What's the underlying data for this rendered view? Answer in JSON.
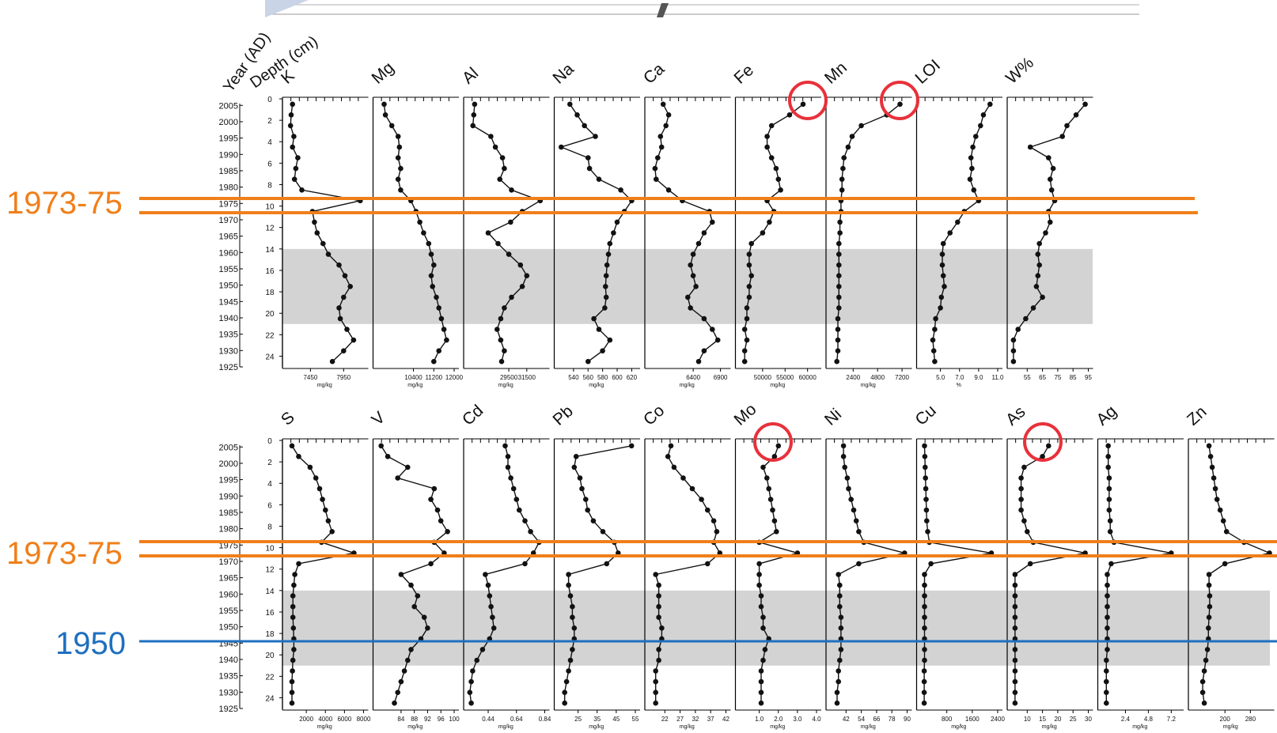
{
  "header_labels": {
    "year": "Year (AD)",
    "depth": "Depth (cm)"
  },
  "markers": {
    "label_1973": "1973-75",
    "label_1950": "1950",
    "color_1973": "#f07f1a",
    "color_1950": "#1f6fbf",
    "circle_color": "#e8313b",
    "band_color": "#d3d3d3"
  },
  "chart_data": {
    "type": "line",
    "orientation": "depth profiles (values on x, depth downward)",
    "depth_axis": {
      "range": [
        0,
        25
      ],
      "ticks": [
        "0",
        "2",
        "4",
        "6",
        "8",
        "10",
        "12",
        "14",
        "16",
        "18",
        "20",
        "22",
        "24"
      ]
    },
    "year_axis": {
      "ticks": [
        "2005",
        "2000",
        "1995",
        "1990",
        "1985",
        "1980",
        "1975",
        "1970",
        "1965",
        "1960",
        "1955",
        "1950",
        "1945",
        "1940",
        "1935",
        "1930",
        "1925"
      ]
    },
    "depths": [
      0.5,
      1.5,
      2.5,
      3.5,
      4.5,
      5.5,
      6.5,
      7.5,
      8.5,
      9.5,
      10.5,
      11.5,
      12.5,
      13.5,
      14.5,
      15.5,
      16.5,
      17.5,
      18.5,
      19.5,
      20.5,
      21.5,
      22.5,
      23.5,
      24.5
    ],
    "shaded_interval_depth": [
      14,
      21
    ],
    "panels": [
      {
        "name": "K",
        "unit": "mg/kg",
        "xlim": [
          7100,
          8250
        ],
        "ticks": [
          "7450",
          "7950"
        ],
        "values": [
          7180,
          7160,
          7150,
          7200,
          7180,
          7260,
          7230,
          7210,
          7320,
          8200,
          7480,
          7510,
          7550,
          7640,
          7720,
          7880,
          7970,
          8050,
          7950,
          7880,
          7900,
          8000,
          8100,
          7950,
          7780
        ]
      },
      {
        "name": "Mg",
        "unit": "mg/kg",
        "xlim": [
          9000,
          12000
        ],
        "ticks": [
          "10400",
          "11200",
          "12000"
        ],
        "values": [
          9250,
          9300,
          9550,
          9800,
          9850,
          9800,
          9900,
          9800,
          9900,
          10300,
          10500,
          10650,
          10800,
          11000,
          11100,
          11200,
          11100,
          11150,
          11300,
          11400,
          11500,
          11600,
          11700,
          11400,
          11200
        ]
      },
      {
        "name": "Al",
        "unit": "mg/kg",
        "xlim": [
          25000,
          33500
        ],
        "ticks": [
          "29500",
          "31500"
        ],
        "values": [
          25700,
          25600,
          25500,
          27500,
          28000,
          28800,
          29000,
          28500,
          29800,
          33000,
          31000,
          29700,
          27200,
          28300,
          29500,
          30800,
          31500,
          31000,
          29800,
          29000,
          28600,
          28200,
          28600,
          29000,
          28700
        ]
      },
      {
        "name": "Na",
        "unit": "mg/kg",
        "xlim": [
          520,
          625
        ],
        "ticks": [
          "540",
          "560",
          "580",
          "600",
          "620"
        ],
        "values": [
          535,
          545,
          555,
          570,
          523,
          560,
          562,
          575,
          605,
          620,
          610,
          600,
          595,
          590,
          588,
          586,
          585,
          584,
          585,
          583,
          568,
          575,
          590,
          580,
          560
        ]
      },
      {
        "name": "Ca",
        "unit": "mg/kg",
        "xlim": [
          5600,
          7000
        ],
        "ticks": [
          "6400",
          "6900"
        ],
        "values": [
          5850,
          5950,
          5900,
          5800,
          5820,
          5750,
          5700,
          5720,
          5950,
          6200,
          6700,
          6750,
          6600,
          6500,
          6400,
          6350,
          6400,
          6450,
          6300,
          6350,
          6600,
          6750,
          6850,
          6600,
          6500
        ]
      },
      {
        "name": "Fe",
        "unit": "mg/kg",
        "xlim": [
          45000,
          62000
        ],
        "ticks": [
          "50000",
          "55000",
          "60000"
        ],
        "values": [
          59000,
          56000,
          52000,
          51000,
          51000,
          52000,
          53000,
          53500,
          54000,
          51000,
          52500,
          51500,
          50000,
          47500,
          47000,
          47000,
          47500,
          47000,
          47000,
          46500,
          46500,
          46000,
          46500,
          46000,
          46000
        ]
      },
      {
        "name": "Mn",
        "unit": "mg/kg",
        "xlim": [
          200,
          7700
        ],
        "ticks": [
          "2400",
          "4800",
          "7200"
        ],
        "values": [
          7000,
          5700,
          3200,
          2300,
          1900,
          1500,
          1400,
          1300,
          1300,
          1200,
          1200,
          1100,
          1100,
          1000,
          1000,
          1000,
          1000,
          1000,
          1000,
          1000,
          900,
          900,
          900,
          900,
          800
        ]
      },
      {
        "name": "LOI",
        "unit": "%",
        "xlim": [
          3.0,
          11.0
        ],
        "ticks": [
          "5.0",
          "7.0",
          "9.0",
          "11.0"
        ],
        "values": [
          10.2,
          9.5,
          9.2,
          8.7,
          8.4,
          8.2,
          8.3,
          8.1,
          8.5,
          9.0,
          7.5,
          6.8,
          6.0,
          5.3,
          5.2,
          5.2,
          5.3,
          5.4,
          5.1,
          5.0,
          4.5,
          4.4,
          4.2,
          4.3,
          4.4
        ]
      },
      {
        "name": "W%",
        "unit": "",
        "xlim": [
          45,
          95
        ],
        "ticks": [
          "55",
          "65",
          "75",
          "85",
          "95"
        ],
        "values": [
          93,
          87,
          81,
          78,
          57,
          69,
          72,
          70,
          71,
          73,
          69,
          70,
          67,
          63,
          62,
          63,
          62,
          61,
          65,
          59,
          54,
          49,
          46,
          46,
          46
        ]
      },
      {
        "name": "S",
        "unit": "mg/kg",
        "xlim": [
          0,
          8000
        ],
        "ticks": [
          "2000",
          "4000",
          "6000",
          "8000"
        ],
        "values": [
          500,
          1200,
          2400,
          3000,
          3400,
          3700,
          4000,
          4300,
          4700,
          3600,
          7000,
          1200,
          800,
          700,
          600,
          600,
          600,
          650,
          700,
          700,
          600,
          550,
          500,
          500,
          500
        ]
      },
      {
        "name": "V",
        "unit": "mg/kg",
        "xlim": [
          77,
          100
        ],
        "ticks": [
          "84",
          "88",
          "92",
          "96",
          "100"
        ],
        "values": [
          78,
          80,
          86,
          83,
          94,
          93,
          95,
          96,
          98,
          94,
          97,
          93,
          84,
          87,
          89,
          88,
          91,
          92,
          90,
          87,
          86,
          85,
          84,
          83,
          82
        ]
      },
      {
        "name": "Cd",
        "unit": "mg/kg",
        "xlim": [
          0.3,
          0.84
        ],
        "ticks": [
          "0.44",
          "0.64",
          "0.84"
        ],
        "values": [
          0.56,
          0.58,
          0.58,
          0.6,
          0.62,
          0.64,
          0.66,
          0.7,
          0.74,
          0.8,
          0.76,
          0.7,
          0.42,
          0.44,
          0.45,
          0.46,
          0.47,
          0.48,
          0.45,
          0.4,
          0.36,
          0.33,
          0.32,
          0.31,
          0.32
        ]
      },
      {
        "name": "Pb",
        "unit": "mg/kg",
        "xlim": [
          15,
          55
        ],
        "ticks": [
          "25",
          "35",
          "45",
          "55"
        ],
        "values": [
          53,
          24,
          23,
          26,
          27,
          29,
          30,
          33,
          38,
          44,
          46,
          40,
          20,
          20,
          21,
          22,
          22,
          23,
          23,
          22,
          21,
          20,
          19,
          18,
          18
        ]
      },
      {
        "name": "Co",
        "unit": "mg/kg",
        "xlim": [
          17,
          42
        ],
        "ticks": [
          "22",
          "27",
          "32",
          "37",
          "42"
        ],
        "values": [
          24,
          23,
          25,
          28,
          31,
          34,
          36,
          38,
          39,
          38,
          40,
          36,
          19,
          20,
          20,
          20,
          20,
          21,
          21,
          20,
          20,
          19,
          19,
          19,
          19
        ]
      },
      {
        "name": "Mo",
        "unit": "mg/kg",
        "xlim": [
          0,
          4.0
        ],
        "ticks": [
          "1.0",
          "2.0",
          "3.0",
          "4.0"
        ],
        "values": [
          2.0,
          1.8,
          1.2,
          1.4,
          1.5,
          1.6,
          1.7,
          1.8,
          1.9,
          1.0,
          3.0,
          1.0,
          1.0,
          1.0,
          1.1,
          1.1,
          1.2,
          1.2,
          1.5,
          1.3,
          1.2,
          1.1,
          1.1,
          1.1,
          1.1
        ]
      },
      {
        "name": "Ni",
        "unit": "mg/kg",
        "xlim": [
          30,
          90
        ],
        "ticks": [
          "42",
          "54",
          "66",
          "78",
          "90"
        ],
        "values": [
          40,
          40,
          41,
          43,
          44,
          46,
          48,
          50,
          52,
          56,
          88,
          52,
          36,
          37,
          37,
          37,
          38,
          38,
          38,
          38,
          37,
          36,
          36,
          35,
          35
        ]
      },
      {
        "name": "Cu",
        "unit": "mg/kg",
        "xlim": [
          0,
          2400
        ],
        "ticks": [
          "800",
          "1600",
          "2400"
        ],
        "values": [
          100,
          110,
          120,
          130,
          140,
          150,
          160,
          170,
          200,
          250,
          2200,
          300,
          100,
          100,
          100,
          100,
          100,
          100,
          100,
          100,
          100,
          90,
          90,
          90,
          90
        ]
      },
      {
        "name": "As",
        "unit": "mg/kg",
        "xlim": [
          5,
          30
        ],
        "ticks": [
          "10",
          "15",
          "20",
          "25",
          "30"
        ],
        "values": [
          17,
          15,
          9,
          8,
          8,
          8,
          8,
          9,
          10,
          12,
          29,
          11,
          6,
          6,
          6,
          6,
          6,
          6,
          6,
          6,
          6,
          6,
          6,
          6,
          6
        ]
      },
      {
        "name": "Ag",
        "unit": "mg/kg",
        "xlim": [
          0,
          8.0
        ],
        "ticks": [
          "2.4",
          "4.8",
          "7.2"
        ],
        "values": [
          0.6,
          0.6,
          0.6,
          0.7,
          0.7,
          0.7,
          0.7,
          0.8,
          0.8,
          1.2,
          7.2,
          0.9,
          0.5,
          0.5,
          0.5,
          0.5,
          0.5,
          0.5,
          0.5,
          0.5,
          0.4,
          0.4,
          0.4,
          0.4,
          0.4
        ]
      },
      {
        "name": "Zn",
        "unit": "mg/kg",
        "xlim": [
          100,
          340
        ],
        "ticks": [
          "200",
          "280"
        ],
        "values": [
          150,
          155,
          160,
          165,
          170,
          175,
          185,
          195,
          205,
          260,
          340,
          200,
          150,
          150,
          152,
          152,
          150,
          148,
          148,
          145,
          140,
          135,
          130,
          130,
          135
        ]
      }
    ]
  }
}
